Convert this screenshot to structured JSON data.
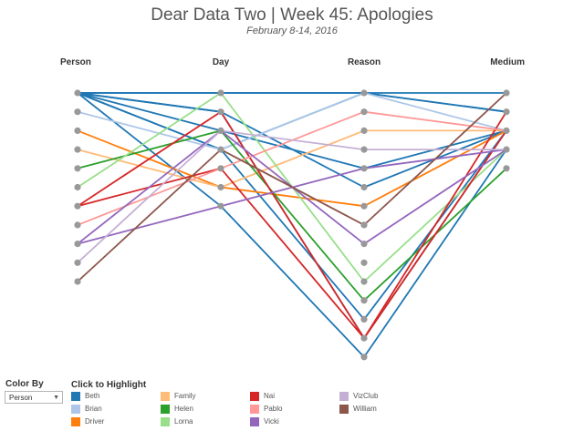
{
  "title": "Dear Data Two | Week 45: Apologies",
  "subtitle": "February 8-14, 2016",
  "color_by": {
    "label": "Color By",
    "selected": "Person"
  },
  "legend": {
    "title": "Click to Highlight",
    "items": [
      {
        "name": "Beth",
        "color": "#1f77b4"
      },
      {
        "name": "Brian",
        "color": "#aec7e8"
      },
      {
        "name": "Driver",
        "color": "#ff7f0e"
      },
      {
        "name": "Family",
        "color": "#ffbb78"
      },
      {
        "name": "Helen",
        "color": "#2ca02c"
      },
      {
        "name": "Lorna",
        "color": "#98df8a"
      },
      {
        "name": "Nai",
        "color": "#d62728"
      },
      {
        "name": "Pablo",
        "color": "#ff9896"
      },
      {
        "name": "Vicki",
        "color": "#9467bd"
      },
      {
        "name": "VizClub",
        "color": "#c5b0d5"
      },
      {
        "name": "William",
        "color": "#8c564b"
      }
    ]
  },
  "chart_data": {
    "type": "parallel-sets",
    "axes": [
      {
        "name": "Person",
        "levels": 11
      },
      {
        "name": "Day",
        "levels": 7
      },
      {
        "name": "Reason",
        "levels": 15
      },
      {
        "name": "Medium",
        "levels": 5
      }
    ],
    "node_color": "#999999",
    "series": [
      {
        "name": "Beth",
        "path": [
          0,
          0,
          0,
          1
        ]
      },
      {
        "name": "Beth",
        "path": [
          0,
          0,
          0,
          0
        ]
      },
      {
        "name": "Beth",
        "path": [
          0,
          1,
          5,
          2
        ]
      },
      {
        "name": "Beth",
        "path": [
          0,
          2,
          4,
          2
        ]
      },
      {
        "name": "Beth",
        "path": [
          0,
          3,
          12,
          2
        ]
      },
      {
        "name": "Beth",
        "path": [
          0,
          6,
          14,
          3
        ]
      },
      {
        "name": "Beth",
        "path": [
          0,
          3,
          0,
          1
        ]
      },
      {
        "name": "Beth",
        "path": [
          0,
          1,
          13,
          2
        ]
      },
      {
        "name": "Brian",
        "path": [
          1,
          3,
          0,
          2
        ]
      },
      {
        "name": "Driver",
        "path": [
          2,
          5,
          6,
          2
        ]
      },
      {
        "name": "Family",
        "path": [
          3,
          5,
          2,
          2
        ]
      },
      {
        "name": "Helen",
        "path": [
          4,
          2,
          11,
          4
        ]
      },
      {
        "name": "Lorna",
        "path": [
          5,
          0,
          10,
          3
        ]
      },
      {
        "name": "Nai",
        "path": [
          6,
          1,
          13,
          1
        ]
      },
      {
        "name": "Nai",
        "path": [
          6,
          4,
          13,
          2
        ]
      },
      {
        "name": "Pablo",
        "path": [
          7,
          4,
          1,
          2
        ]
      },
      {
        "name": "Vicki",
        "path": [
          8,
          2,
          8,
          3
        ]
      },
      {
        "name": "Vicki",
        "path": [
          8,
          6,
          4,
          3
        ]
      },
      {
        "name": "VizClub",
        "path": [
          9,
          2,
          3,
          3
        ]
      },
      {
        "name": "William",
        "path": [
          10,
          3,
          7,
          0
        ]
      }
    ]
  }
}
